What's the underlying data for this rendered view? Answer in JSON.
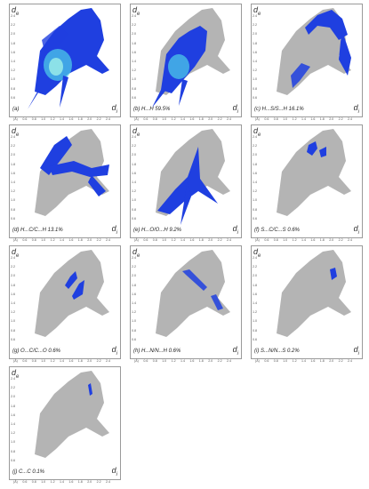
{
  "axis": {
    "y_label": "d",
    "y_sub": "e",
    "x_label": "d",
    "x_sub": "i",
    "y_ticks": [
      "2.4",
      "2.2",
      "2.0",
      "1.8",
      "1.6",
      "1.4",
      "1.2",
      "1.0",
      "0.8",
      "0.6"
    ],
    "x_ticks": [
      "(Å)",
      "0.6",
      "0.8",
      "1.0",
      "1.2",
      "1.4",
      "1.6",
      "1.8",
      "2.0",
      "2.2",
      "2.4"
    ]
  },
  "colors": {
    "background_points": "#b4b4b4",
    "highlight_points": "#1f3fe0",
    "core_points": "#4fd2e8"
  },
  "panels": [
    {
      "caption": "(a)"
    },
    {
      "caption": "(b)  H...H  59.5%"
    },
    {
      "caption": "(c)  H...S/S...H  16.1%"
    },
    {
      "caption": "(d)  H...C/C...H  13.1%"
    },
    {
      "caption": "(e)  H...O/O...H  9.2%"
    },
    {
      "caption": "(f)  S...C/C...S  0.6%"
    },
    {
      "caption": "(g)  O...C/C...O  0.6%"
    },
    {
      "caption": "(h)  H...N/N...H  0.6%"
    },
    {
      "caption": "(i)  S...N/N...S  0.2%"
    },
    {
      "caption": "(j)  C...C  0.1%"
    }
  ],
  "chart_data": [
    {
      "type": "scatter",
      "title": "(a)",
      "xlabel": "di",
      "ylabel": "de",
      "xlim": [
        0.6,
        2.4
      ],
      "ylim": [
        0.6,
        2.4
      ],
      "highlight": "all contacts",
      "percent": null
    },
    {
      "type": "scatter",
      "title": "(b)",
      "xlabel": "di",
      "ylabel": "de",
      "xlim": [
        0.6,
        2.4
      ],
      "ylim": [
        0.6,
        2.4
      ],
      "highlight": "H...H",
      "percent": 59.5
    },
    {
      "type": "scatter",
      "title": "(c)",
      "xlabel": "di",
      "ylabel": "de",
      "xlim": [
        0.6,
        2.4
      ],
      "ylim": [
        0.6,
        2.4
      ],
      "highlight": "H...S/S...H",
      "percent": 16.1
    },
    {
      "type": "scatter",
      "title": "(d)",
      "xlabel": "di",
      "ylabel": "de",
      "xlim": [
        0.6,
        2.4
      ],
      "ylim": [
        0.6,
        2.4
      ],
      "highlight": "H...C/C...H",
      "percent": 13.1
    },
    {
      "type": "scatter",
      "title": "(e)",
      "xlabel": "di",
      "ylabel": "de",
      "xlim": [
        0.6,
        2.4
      ],
      "ylim": [
        0.6,
        2.4
      ],
      "highlight": "H...O/O...H",
      "percent": 9.2
    },
    {
      "type": "scatter",
      "title": "(f)",
      "xlabel": "di",
      "ylabel": "de",
      "xlim": [
        0.6,
        2.4
      ],
      "ylim": [
        0.6,
        2.4
      ],
      "highlight": "S...C/C...S",
      "percent": 0.6
    },
    {
      "type": "scatter",
      "title": "(g)",
      "xlabel": "di",
      "ylabel": "de",
      "xlim": [
        0.6,
        2.4
      ],
      "ylim": [
        0.6,
        2.4
      ],
      "highlight": "O...C/C...O",
      "percent": 0.6
    },
    {
      "type": "scatter",
      "title": "(h)",
      "xlabel": "di",
      "ylabel": "de",
      "xlim": [
        0.6,
        2.4
      ],
      "ylim": [
        0.6,
        2.4
      ],
      "highlight": "H...N/N...H",
      "percent": 0.6
    },
    {
      "type": "scatter",
      "title": "(i)",
      "xlabel": "di",
      "ylabel": "de",
      "xlim": [
        0.6,
        2.4
      ],
      "ylim": [
        0.6,
        2.4
      ],
      "highlight": "S...N/N...S",
      "percent": 0.2
    },
    {
      "type": "scatter",
      "title": "(j)",
      "xlabel": "di",
      "ylabel": "de",
      "xlim": [
        0.6,
        2.4
      ],
      "ylim": [
        0.6,
        2.4
      ],
      "highlight": "C...C",
      "percent": 0.1
    }
  ]
}
